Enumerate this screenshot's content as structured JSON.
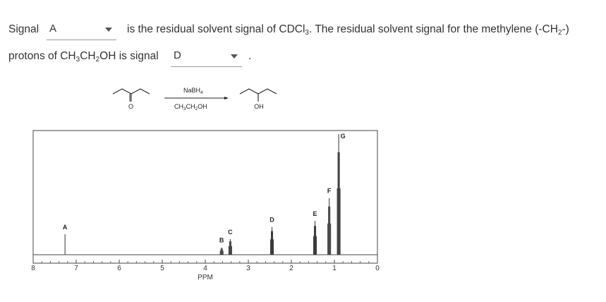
{
  "question": {
    "prefix": "Signal",
    "dropdown1_value": "A",
    "mid_text": "is the residual solvent signal of CDCl",
    "mid_sub": "3",
    "mid_text2": ". The residual solvent signal for the methylene (-CH",
    "mid_sub2": "2",
    "mid_text3": "-)",
    "line2_a": "protons of CH",
    "line2_sub1": "3",
    "line2_b": "CH",
    "line2_sub2": "2",
    "line2_c": "OH is signal",
    "dropdown2_value": "D",
    "period": "."
  },
  "reaction": {
    "reagent_top": "NaBH",
    "reagent_top_sub": "4",
    "reagent_bottom_a": "CH",
    "reagent_bottom_sub1": "3",
    "reagent_bottom_b": "CH",
    "reagent_bottom_sub2": "2",
    "reagent_bottom_c": "OH",
    "reactant_label": "O",
    "product_label": "OH"
  },
  "chart_data": {
    "type": "line",
    "xlabel": "PPM",
    "xlim": [
      8,
      0
    ],
    "x_ticks": [
      "8",
      "7",
      "6",
      "5",
      "4",
      "3",
      "2",
      "1",
      "0"
    ],
    "peaks": [
      {
        "label": "A",
        "ppm": 7.26,
        "height": 0.17
      },
      {
        "label": "B",
        "ppm": 3.62,
        "height": 0.06
      },
      {
        "label": "C",
        "ppm": 3.42,
        "height": 0.13
      },
      {
        "label": "D",
        "ppm": 2.45,
        "height": 0.23
      },
      {
        "label": "E",
        "ppm": 1.45,
        "height": 0.28
      },
      {
        "label": "F",
        "ppm": 1.12,
        "height": 0.47
      },
      {
        "label": "G",
        "ppm": 0.9,
        "height": 1.0
      }
    ]
  }
}
